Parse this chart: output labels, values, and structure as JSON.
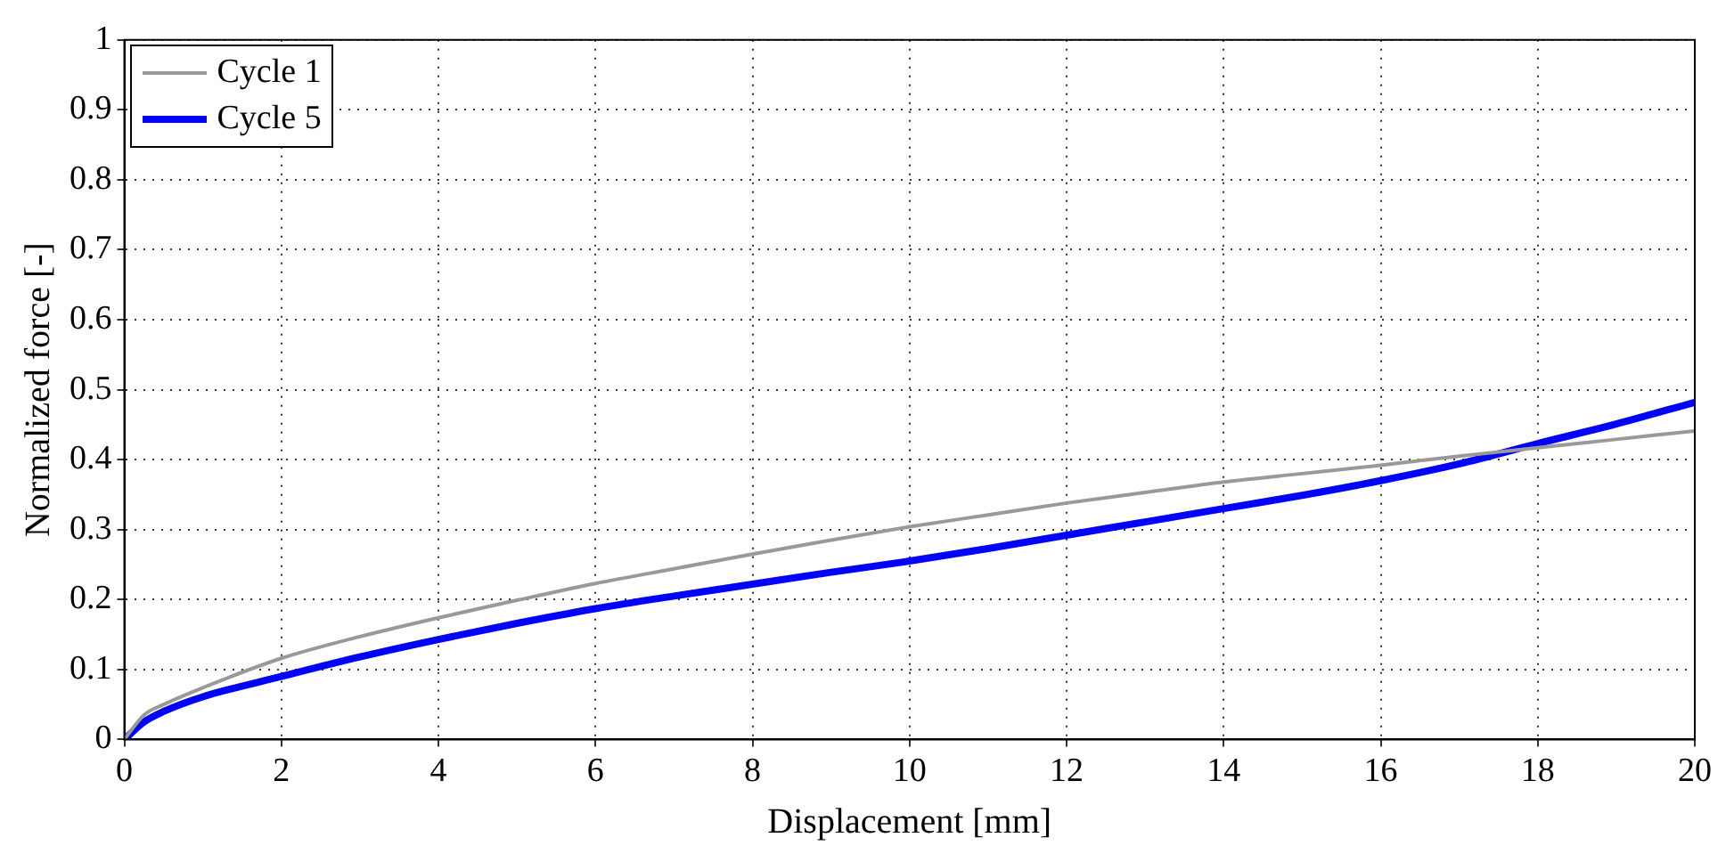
{
  "chart_data": {
    "type": "line",
    "xlabel": "Displacement [mm]",
    "ylabel": "Normalized force [-]",
    "xlim": [
      0,
      20
    ],
    "ylim": [
      0,
      1
    ],
    "xticks": [
      0,
      2,
      4,
      6,
      8,
      10,
      12,
      14,
      16,
      18,
      20
    ],
    "yticks": [
      0,
      0.1,
      0.2,
      0.3,
      0.4,
      0.5,
      0.6,
      0.7,
      0.8,
      0.9,
      1
    ],
    "grid": true,
    "legend": "top left",
    "marker": "none",
    "line_style": "solid",
    "series": [
      {
        "name": "Cycle 1",
        "color": "#999999",
        "x": [
          0,
          0.25,
          0.5,
          1,
          2,
          3,
          4,
          5,
          6,
          7,
          8,
          9,
          10,
          11,
          12,
          13,
          14,
          15,
          16,
          17,
          18,
          19,
          20
        ],
        "values": [
          0,
          0.035,
          0.05,
          0.074,
          0.116,
          0.147,
          0.174,
          0.199,
          0.223,
          0.244,
          0.265,
          0.285,
          0.304,
          0.321,
          0.338,
          0.353,
          0.368,
          0.38,
          0.392,
          0.405,
          0.417,
          0.429,
          0.441
        ]
      },
      {
        "name": "Cycle 5",
        "color": "#0000ff",
        "x": [
          0,
          0.25,
          0.5,
          1,
          2,
          3,
          4,
          5,
          6,
          7,
          8,
          9,
          10,
          11,
          12,
          13,
          14,
          15,
          16,
          17,
          18,
          19,
          20
        ],
        "values": [
          0,
          0.025,
          0.04,
          0.061,
          0.09,
          0.118,
          0.143,
          0.166,
          0.187,
          0.205,
          0.222,
          0.239,
          0.255,
          0.273,
          0.292,
          0.311,
          0.33,
          0.349,
          0.37,
          0.394,
          0.423,
          0.451,
          0.482
        ]
      }
    ]
  }
}
